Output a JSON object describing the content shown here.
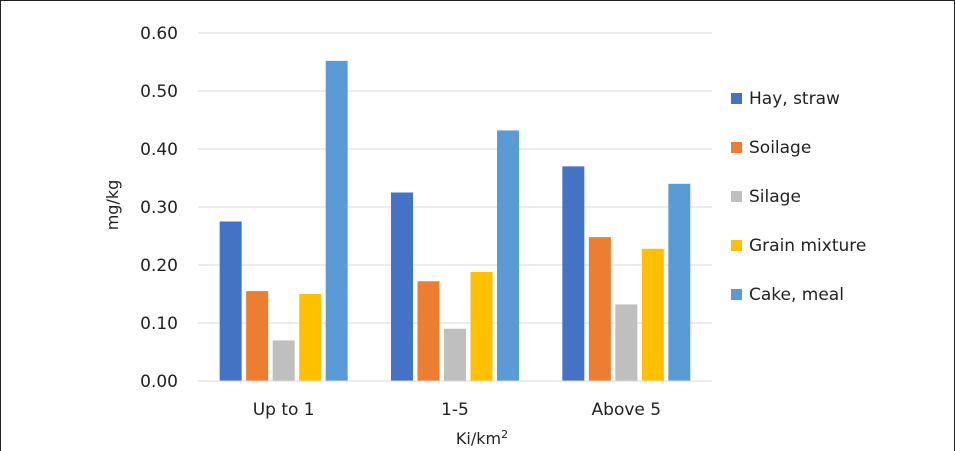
{
  "chart_data": {
    "type": "bar",
    "categories": [
      "Up to 1",
      "1-5",
      "Above 5"
    ],
    "series": [
      {
        "name": "Hay, straw",
        "color": "#4472C4",
        "values": [
          0.275,
          0.325,
          0.37
        ]
      },
      {
        "name": "Soilage",
        "color": "#ED7D31",
        "values": [
          0.155,
          0.172,
          0.248
        ]
      },
      {
        "name": "Silage",
        "color": "#BFBFBF",
        "values": [
          0.07,
          0.09,
          0.132
        ]
      },
      {
        "name": "Grain mixture",
        "color": "#FFC000",
        "values": [
          0.15,
          0.188,
          0.228
        ]
      },
      {
        "name": "Cake, meal",
        "color": "#5B9BD5",
        "values": [
          0.552,
          0.432,
          0.34
        ]
      }
    ],
    "yticks": [
      "0.00",
      "0.10",
      "0.20",
      "0.30",
      "0.40",
      "0.50",
      "0.60"
    ],
    "ylim": [
      0,
      0.6
    ],
    "ylabel": "mg/kg",
    "xlabel": {
      "base": "Ki/km",
      "superscript": "2"
    },
    "grid": true,
    "legend_position": "right"
  }
}
